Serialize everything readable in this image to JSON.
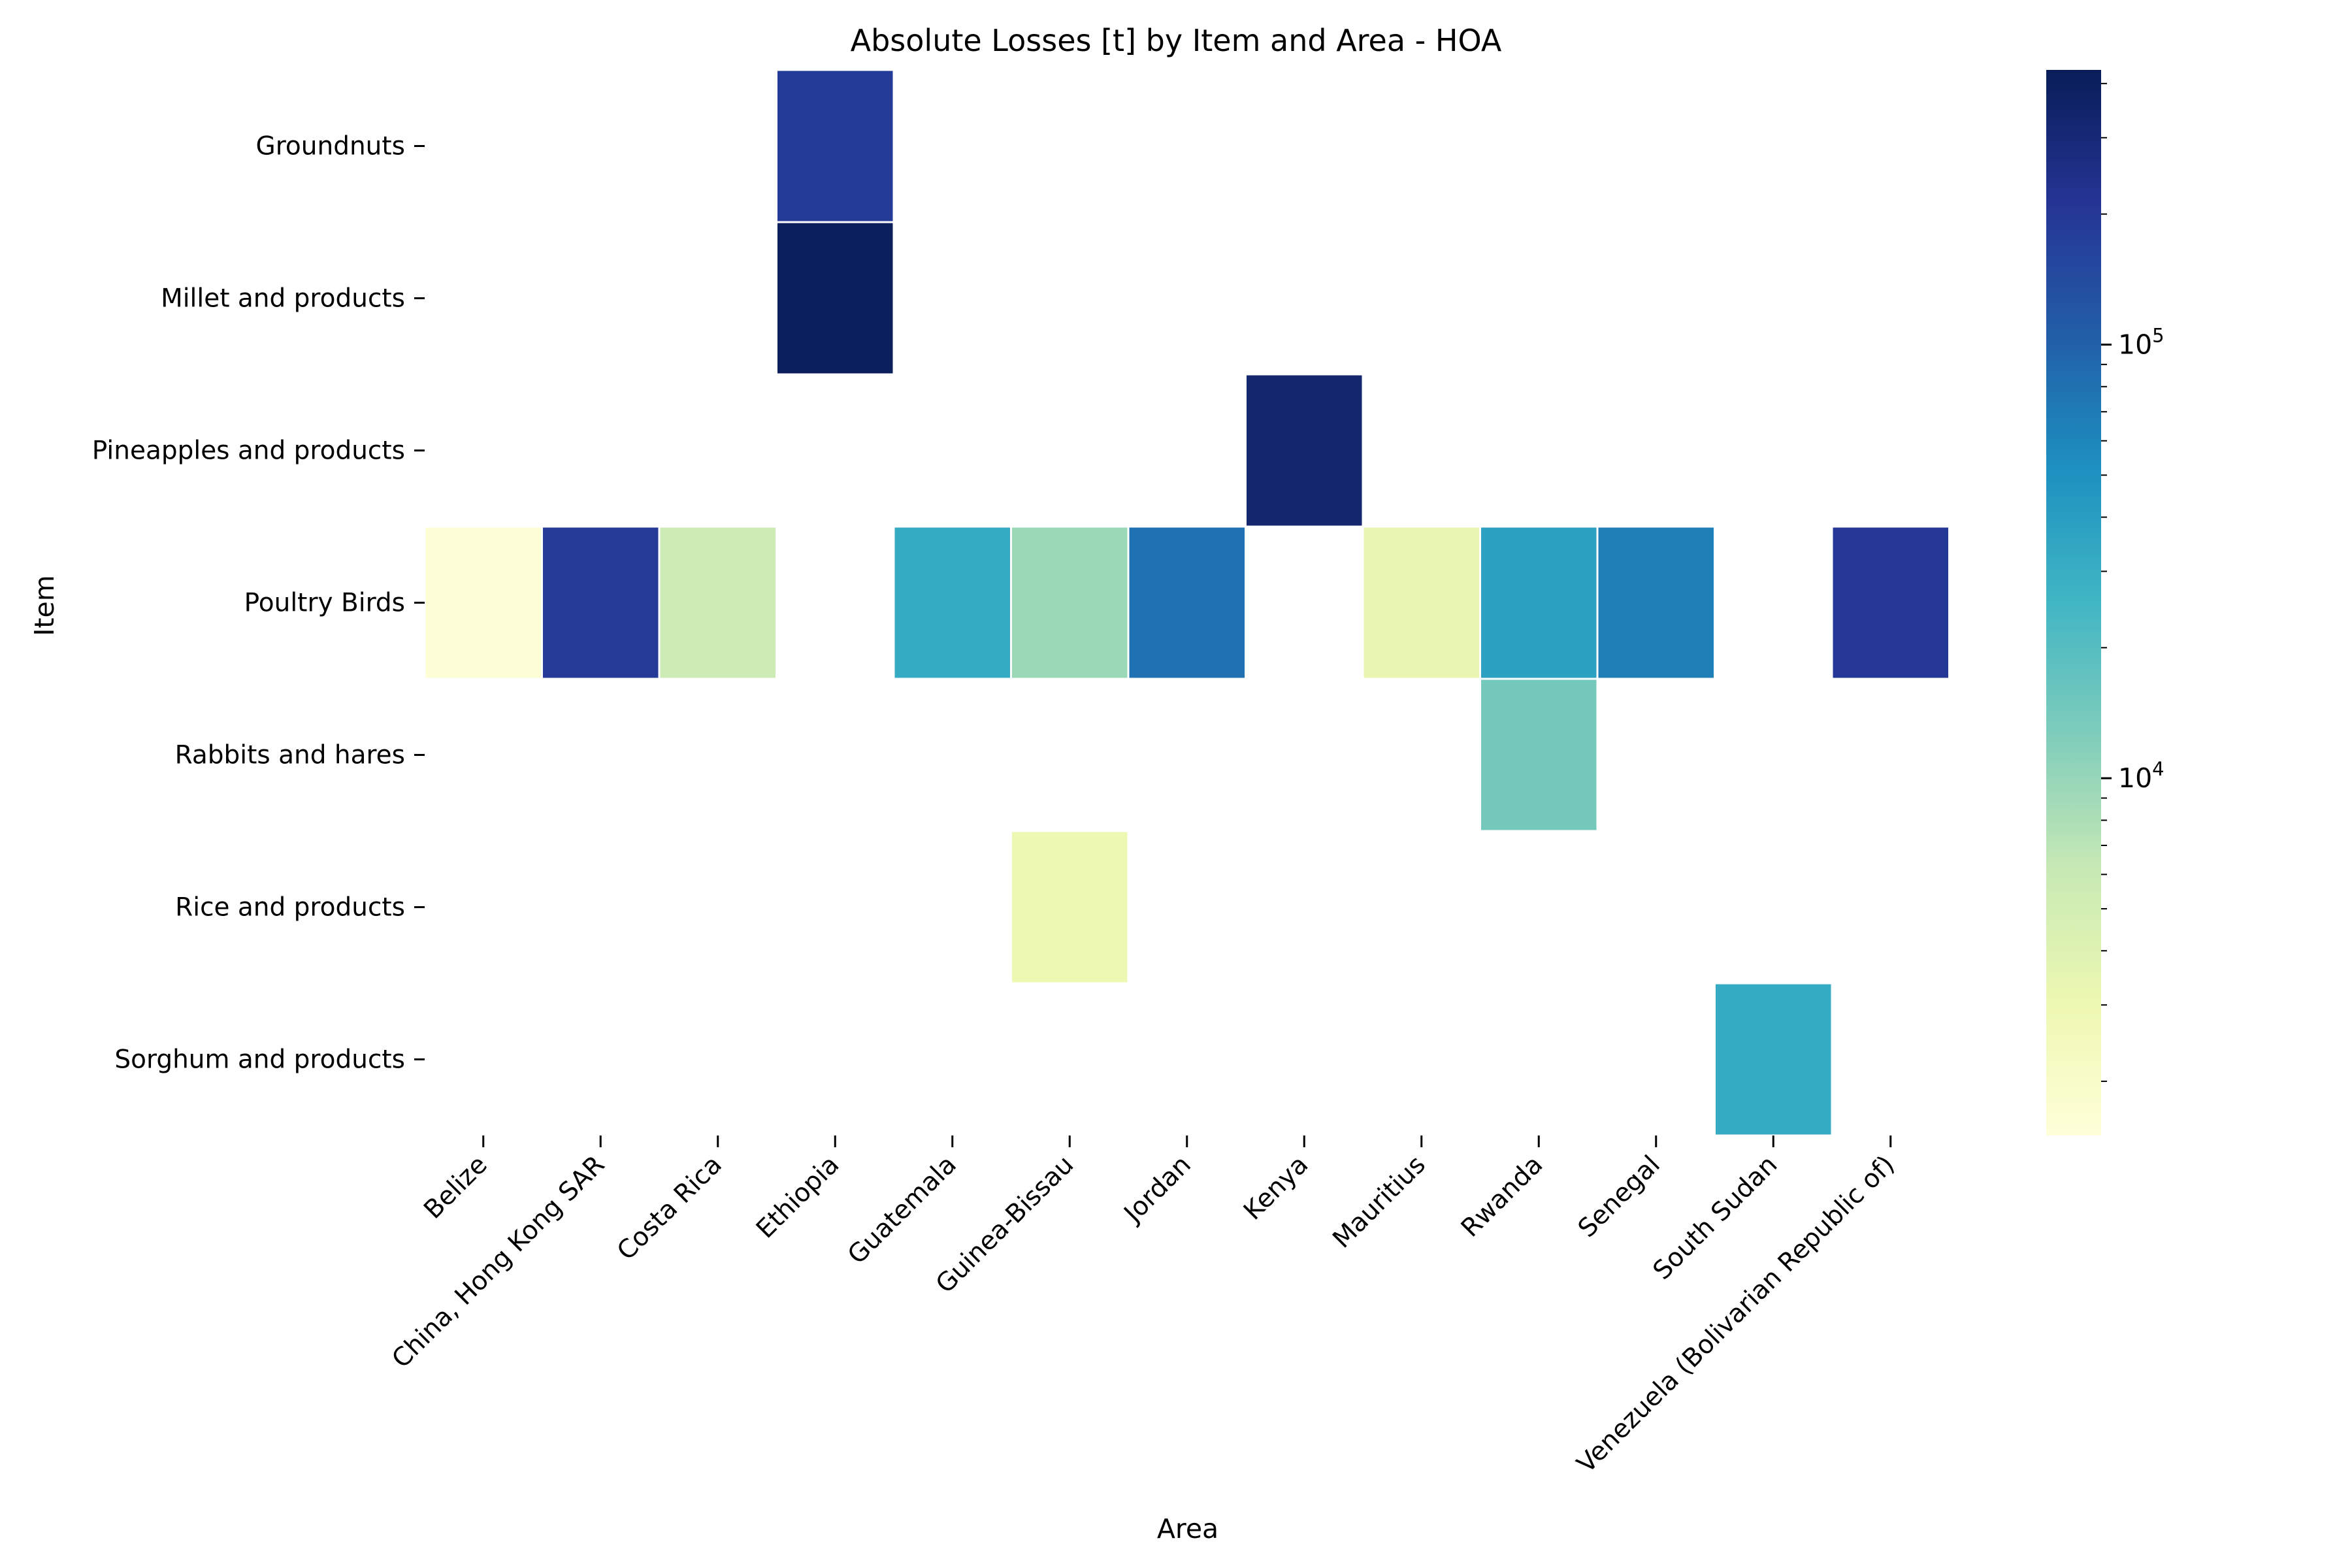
{
  "chart_data": {
    "type": "heatmap",
    "title": "Absolute Losses [t] by Item and Area - HOA",
    "xlabel": "Area",
    "ylabel": "Item",
    "x_categories": [
      "Belize",
      "China, Hong Kong SAR",
      "Costa Rica",
      "Ethiopia",
      "Guatemala",
      "Guinea-Bissau",
      "Jordan",
      "Kenya",
      "Mauritius",
      "Rwanda",
      "Senegal",
      "South Sudan",
      "Venezuela (Bolivarian Republic of)"
    ],
    "y_categories": [
      "Groundnuts",
      "Millet and products",
      "Pineapples and products",
      "Poultry Birds",
      "Rabbits and hares",
      "Rice and products",
      "Sorghum and products"
    ],
    "cells": [
      {
        "x": "Ethiopia",
        "y": "Groundnuts",
        "value": 185000
      },
      {
        "x": "Ethiopia",
        "y": "Millet and products",
        "value": 410000
      },
      {
        "x": "Kenya",
        "y": "Pineapples and products",
        "value": 330000
      },
      {
        "x": "Belize",
        "y": "Poultry Birds",
        "value": 1600
      },
      {
        "x": "China, Hong Kong SAR",
        "y": "Poultry Birds",
        "value": 190000
      },
      {
        "x": "Costa Rica",
        "y": "Poultry Birds",
        "value": 5500
      },
      {
        "x": "Guatemala",
        "y": "Poultry Birds",
        "value": 32000
      },
      {
        "x": "Guinea-Bissau",
        "y": "Poultry Birds",
        "value": 9500
      },
      {
        "x": "Jordan",
        "y": "Poultry Birds",
        "value": 80000
      },
      {
        "x": "Mauritius",
        "y": "Poultry Birds",
        "value": 3300
      },
      {
        "x": "Rwanda",
        "y": "Poultry Birds",
        "value": 38000
      },
      {
        "x": "Senegal",
        "y": "Poultry Birds",
        "value": 65000
      },
      {
        "x": "Venezuela (Bolivarian Republic of)",
        "y": "Poultry Birds",
        "value": 200000
      },
      {
        "x": "Rwanda",
        "y": "Rabbits and hares",
        "value": 14000
      },
      {
        "x": "Guinea-Bissau",
        "y": "Rice and products",
        "value": 3000
      },
      {
        "x": "South Sudan",
        "y": "Sorghum and products",
        "value": 32000
      }
    ],
    "colorbar": {
      "scale": "log",
      "colormap": "YlGnBu",
      "range": [
        1500,
        430000
      ],
      "major_ticks": [
        {
          "value": 10000,
          "label": "10^4"
        },
        {
          "value": 100000,
          "label": "10^5"
        }
      ],
      "minor_ticks": [
        2000,
        3000,
        4000,
        5000,
        6000,
        7000,
        8000,
        9000,
        20000,
        30000,
        40000,
        50000,
        60000,
        70000,
        80000,
        90000,
        200000,
        300000,
        400000
      ]
    },
    "grid": false,
    "cell_border_color": "#ffffff"
  }
}
